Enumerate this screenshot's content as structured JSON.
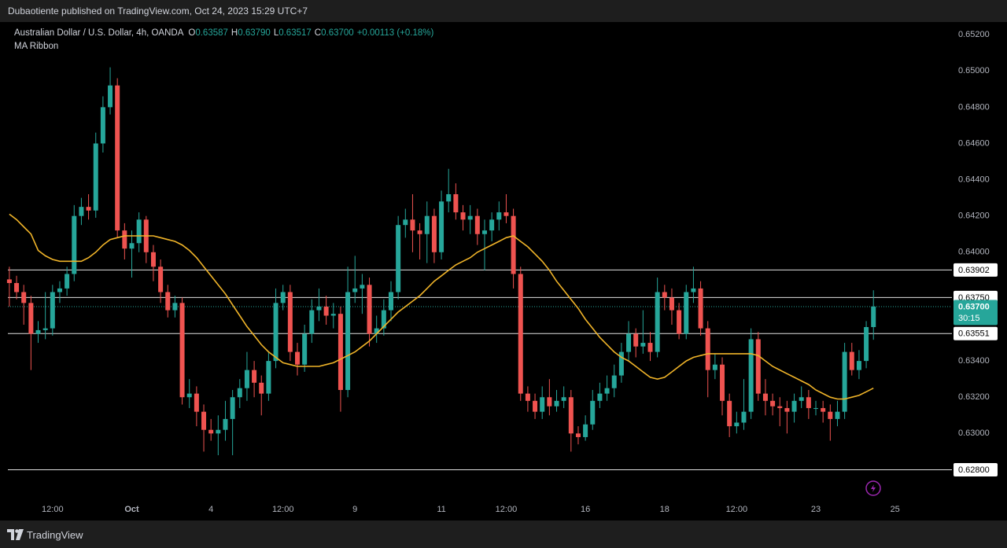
{
  "header": {
    "publisher": "Dubaotiente published on TradingView.com, Oct 24, 2023 15:29 UTC+7"
  },
  "legend": {
    "symbol": "Australian Dollar / U.S. Dollar, 4h, OANDA",
    "items": [
      {
        "key": "O",
        "value": "0.63587"
      },
      {
        "key": "H",
        "value": "0.63790"
      },
      {
        "key": "L",
        "value": "0.63517"
      },
      {
        "key": "C",
        "value": "0.63700"
      }
    ],
    "change": "+0.00113 (+0.18%)"
  },
  "footer": {
    "brand": "TradingView"
  },
  "chart_data": {
    "type": "candlestick",
    "up_color": "#26a69a",
    "down_color": "#ef5350",
    "grid": false,
    "xlim": [
      -1.3,
      130.9
    ],
    "xticks": [
      {
        "value": 6,
        "label": "12:00"
      },
      {
        "value": 17,
        "label": "Oct"
      },
      {
        "value": 28,
        "label": "4"
      },
      {
        "value": 38,
        "label": "12:00"
      },
      {
        "value": 48,
        "label": "9"
      },
      {
        "value": 60,
        "label": "11"
      },
      {
        "value": 69,
        "label": "12:00"
      },
      {
        "value": 80,
        "label": "16"
      },
      {
        "value": 91,
        "label": "18"
      },
      {
        "value": 101,
        "label": "12:00"
      },
      {
        "value": 112,
        "label": "23"
      },
      {
        "value": 123,
        "label": "25"
      }
    ],
    "ylim": [
      0.6252,
      0.6527
    ],
    "yticks": [
      {
        "value": 0.652,
        "label": "0.65200"
      },
      {
        "value": 0.65,
        "label": "0.65000"
      },
      {
        "value": 0.648,
        "label": "0.64800"
      },
      {
        "value": 0.646,
        "label": "0.64600"
      },
      {
        "value": 0.644,
        "label": "0.64400"
      },
      {
        "value": 0.642,
        "label": "0.64200"
      },
      {
        "value": 0.64,
        "label": "0.64000"
      },
      {
        "value": 0.634,
        "label": "0.63400"
      },
      {
        "value": 0.632,
        "label": "0.63200"
      },
      {
        "value": 0.63,
        "label": "0.63000"
      }
    ],
    "levels": [
      {
        "value": 0.63902,
        "label": "0.63902"
      },
      {
        "value": 0.6375,
        "label": "0.63750"
      },
      {
        "value": 0.63551,
        "label": "0.63551"
      },
      {
        "value": 0.628,
        "label": "0.62800"
      }
    ],
    "last_price": {
      "value": 0.637,
      "label": "0.63700",
      "countdown": "30:15"
    },
    "open": [
      0.6385,
      0.6383,
      0.6378,
      0.6372,
      0.6355,
      0.6357,
      0.6358,
      0.6378,
      0.638,
      0.6388,
      0.642,
      0.6425,
      0.6423,
      0.646,
      0.648,
      0.6492,
      0.6412,
      0.6402,
      0.6405,
      0.6418,
      0.64,
      0.6392,
      0.6378,
      0.6368,
      0.6372,
      0.632,
      0.6322,
      0.6312,
      0.6302,
      0.63,
      0.6302,
      0.6308,
      0.632,
      0.6325,
      0.6335,
      0.6328,
      0.6322,
      0.634,
      0.6372,
      0.6378,
      0.6345,
      0.6338,
      0.6355,
      0.6368,
      0.637,
      0.6365,
      0.6366,
      0.6324,
      0.6378,
      0.638,
      0.6382,
      0.6355,
      0.6358,
      0.6368,
      0.6378,
      0.6415,
      0.6418,
      0.6412,
      0.641,
      0.642,
      0.64,
      0.6428,
      0.6432,
      0.6422,
      0.6418,
      0.642,
      0.641,
      0.6412,
      0.6418,
      0.6422,
      0.642,
      0.6388,
      0.6322,
      0.6318,
      0.6312,
      0.632,
      0.6315,
      0.6318,
      0.632,
      0.63,
      0.6298,
      0.6305,
      0.6318,
      0.6322,
      0.6325,
      0.6332,
      0.6345,
      0.6355,
      0.6348,
      0.635,
      0.6345,
      0.6378,
      0.6375,
      0.6368,
      0.6355,
      0.6378,
      0.638,
      0.6358,
      0.6335,
      0.6338,
      0.6318,
      0.6304,
      0.6306,
      0.6312,
      0.6352,
      0.6322,
      0.6318,
      0.6315,
      0.6314,
      0.6312,
      0.6318,
      0.632,
      0.6314,
      0.6314,
      0.6312,
      0.6308,
      0.6312,
      0.6345,
      0.6335,
      0.634,
      0.63587
    ],
    "high": [
      0.6392,
      0.6387,
      0.6382,
      0.6376,
      0.6362,
      0.6378,
      0.6382,
      0.6384,
      0.6392,
      0.6426,
      0.643,
      0.6432,
      0.6466,
      0.6486,
      0.6502,
      0.6496,
      0.6416,
      0.6412,
      0.6422,
      0.642,
      0.6404,
      0.6396,
      0.6382,
      0.6376,
      0.6375,
      0.633,
      0.6326,
      0.6316,
      0.6308,
      0.631,
      0.6318,
      0.6324,
      0.633,
      0.6345,
      0.634,
      0.6332,
      0.6345,
      0.638,
      0.6382,
      0.6382,
      0.635,
      0.636,
      0.6374,
      0.638,
      0.6376,
      0.6372,
      0.637,
      0.6392,
      0.6398,
      0.6388,
      0.6386,
      0.6365,
      0.6374,
      0.6384,
      0.642,
      0.6424,
      0.6432,
      0.6416,
      0.6428,
      0.6424,
      0.6434,
      0.6446,
      0.6438,
      0.6426,
      0.6426,
      0.6424,
      0.6418,
      0.6422,
      0.6428,
      0.6432,
      0.6424,
      0.6392,
      0.6326,
      0.6322,
      0.6326,
      0.633,
      0.6324,
      0.6326,
      0.6324,
      0.6304,
      0.631,
      0.6324,
      0.6328,
      0.6332,
      0.6338,
      0.635,
      0.6362,
      0.6358,
      0.6368,
      0.6356,
      0.6386,
      0.6382,
      0.638,
      0.6372,
      0.6382,
      0.6392,
      0.6384,
      0.6362,
      0.6344,
      0.6342,
      0.6322,
      0.6312,
      0.633,
      0.6358,
      0.6356,
      0.633,
      0.6322,
      0.632,
      0.6318,
      0.6322,
      0.6326,
      0.6324,
      0.6318,
      0.6318,
      0.6316,
      0.6318,
      0.635,
      0.635,
      0.6346,
      0.6362,
      0.6379
    ],
    "low": [
      0.637,
      0.6374,
      0.636,
      0.6335,
      0.635,
      0.6352,
      0.6354,
      0.6372,
      0.6376,
      0.6384,
      0.6415,
      0.6418,
      0.6419,
      0.6455,
      0.6476,
      0.6408,
      0.6396,
      0.6386,
      0.64,
      0.6394,
      0.6384,
      0.6372,
      0.6364,
      0.6364,
      0.6316,
      0.6314,
      0.6304,
      0.629,
      0.6296,
      0.6288,
      0.6296,
      0.6288,
      0.6314,
      0.6318,
      0.632,
      0.631,
      0.6318,
      0.6336,
      0.6368,
      0.634,
      0.6332,
      0.6334,
      0.635,
      0.6362,
      0.636,
      0.6358,
      0.6312,
      0.632,
      0.6372,
      0.6366,
      0.6348,
      0.635,
      0.6354,
      0.6362,
      0.6374,
      0.6408,
      0.64,
      0.6396,
      0.6394,
      0.6394,
      0.6396,
      0.6422,
      0.6418,
      0.6412,
      0.641,
      0.6404,
      0.639,
      0.6406,
      0.6412,
      0.6416,
      0.638,
      0.6318,
      0.6312,
      0.6308,
      0.6308,
      0.631,
      0.6312,
      0.6314,
      0.629,
      0.6294,
      0.6296,
      0.6302,
      0.6314,
      0.6318,
      0.632,
      0.6328,
      0.634,
      0.6342,
      0.6344,
      0.634,
      0.6342,
      0.6368,
      0.636,
      0.6352,
      0.6352,
      0.6372,
      0.6354,
      0.632,
      0.633,
      0.631,
      0.6298,
      0.63,
      0.6302,
      0.6308,
      0.6318,
      0.631,
      0.631,
      0.6304,
      0.63,
      0.6306,
      0.6314,
      0.6308,
      0.631,
      0.6306,
      0.6296,
      0.6304,
      0.6308,
      0.6332,
      0.633,
      0.6336,
      0.63517
    ],
    "close": [
      0.6383,
      0.6378,
      0.6372,
      0.6355,
      0.6357,
      0.6358,
      0.6378,
      0.638,
      0.6388,
      0.642,
      0.6425,
      0.6423,
      0.646,
      0.648,
      0.6492,
      0.6412,
      0.6402,
      0.6405,
      0.6418,
      0.64,
      0.6392,
      0.6378,
      0.6368,
      0.6372,
      0.632,
      0.6322,
      0.6312,
      0.6302,
      0.63,
      0.6302,
      0.6308,
      0.632,
      0.6325,
      0.6335,
      0.6328,
      0.6322,
      0.634,
      0.6372,
      0.6378,
      0.6345,
      0.6338,
      0.6355,
      0.6368,
      0.637,
      0.6365,
      0.6366,
      0.6324,
      0.6378,
      0.638,
      0.6382,
      0.6355,
      0.6358,
      0.6368,
      0.6378,
      0.6415,
      0.6418,
      0.6412,
      0.641,
      0.642,
      0.64,
      0.6428,
      0.6432,
      0.6422,
      0.6418,
      0.642,
      0.641,
      0.6412,
      0.6418,
      0.6422,
      0.642,
      0.6388,
      0.6322,
      0.6318,
      0.6312,
      0.632,
      0.6315,
      0.6318,
      0.632,
      0.63,
      0.6298,
      0.6305,
      0.6318,
      0.6322,
      0.6325,
      0.6332,
      0.6345,
      0.6355,
      0.6348,
      0.635,
      0.6345,
      0.6378,
      0.6375,
      0.6368,
      0.6355,
      0.6378,
      0.638,
      0.6358,
      0.6335,
      0.6338,
      0.6318,
      0.6304,
      0.6306,
      0.6312,
      0.6352,
      0.6322,
      0.6318,
      0.6315,
      0.6314,
      0.6312,
      0.6318,
      0.632,
      0.6314,
      0.6314,
      0.6312,
      0.6308,
      0.6312,
      0.6345,
      0.6335,
      0.634,
      0.63587,
      0.637
    ],
    "ma": {
      "name": "MA Ribbon",
      "color": "#f0b429",
      "values": [
        0.6421,
        0.6418,
        0.6414,
        0.641,
        0.6401,
        0.6398,
        0.6396,
        0.6395,
        0.6395,
        0.6395,
        0.6395,
        0.6397,
        0.64,
        0.6404,
        0.6407,
        0.6408,
        0.6409,
        0.6409,
        0.6409,
        0.6409,
        0.6409,
        0.6408,
        0.6407,
        0.6406,
        0.6404,
        0.6401,
        0.6397,
        0.6392,
        0.6387,
        0.6382,
        0.6377,
        0.6371,
        0.6365,
        0.6359,
        0.6354,
        0.6349,
        0.6345,
        0.6342,
        0.6339,
        0.6338,
        0.6337,
        0.6337,
        0.6337,
        0.6337,
        0.6338,
        0.6339,
        0.6341,
        0.6343,
        0.6345,
        0.6348,
        0.6351,
        0.6355,
        0.6359,
        0.6363,
        0.6367,
        0.637,
        0.6373,
        0.6376,
        0.638,
        0.6384,
        0.6387,
        0.639,
        0.6393,
        0.6395,
        0.6397,
        0.64,
        0.6402,
        0.6404,
        0.6406,
        0.6408,
        0.6409,
        0.6406,
        0.6403,
        0.6399,
        0.6395,
        0.639,
        0.6384,
        0.6379,
        0.6374,
        0.6369,
        0.6363,
        0.6358,
        0.6353,
        0.6349,
        0.6345,
        0.6342,
        0.634,
        0.6337,
        0.6334,
        0.6331,
        0.633,
        0.6331,
        0.6334,
        0.6337,
        0.634,
        0.6342,
        0.6343,
        0.6344,
        0.6344,
        0.6344,
        0.6344,
        0.6344,
        0.6344,
        0.6344,
        0.6343,
        0.634,
        0.6337,
        0.6335,
        0.6333,
        0.6331,
        0.6329,
        0.6327,
        0.6324,
        0.6322,
        0.632,
        0.6319,
        0.6319,
        0.632,
        0.6321,
        0.6323,
        0.6325
      ]
    }
  }
}
